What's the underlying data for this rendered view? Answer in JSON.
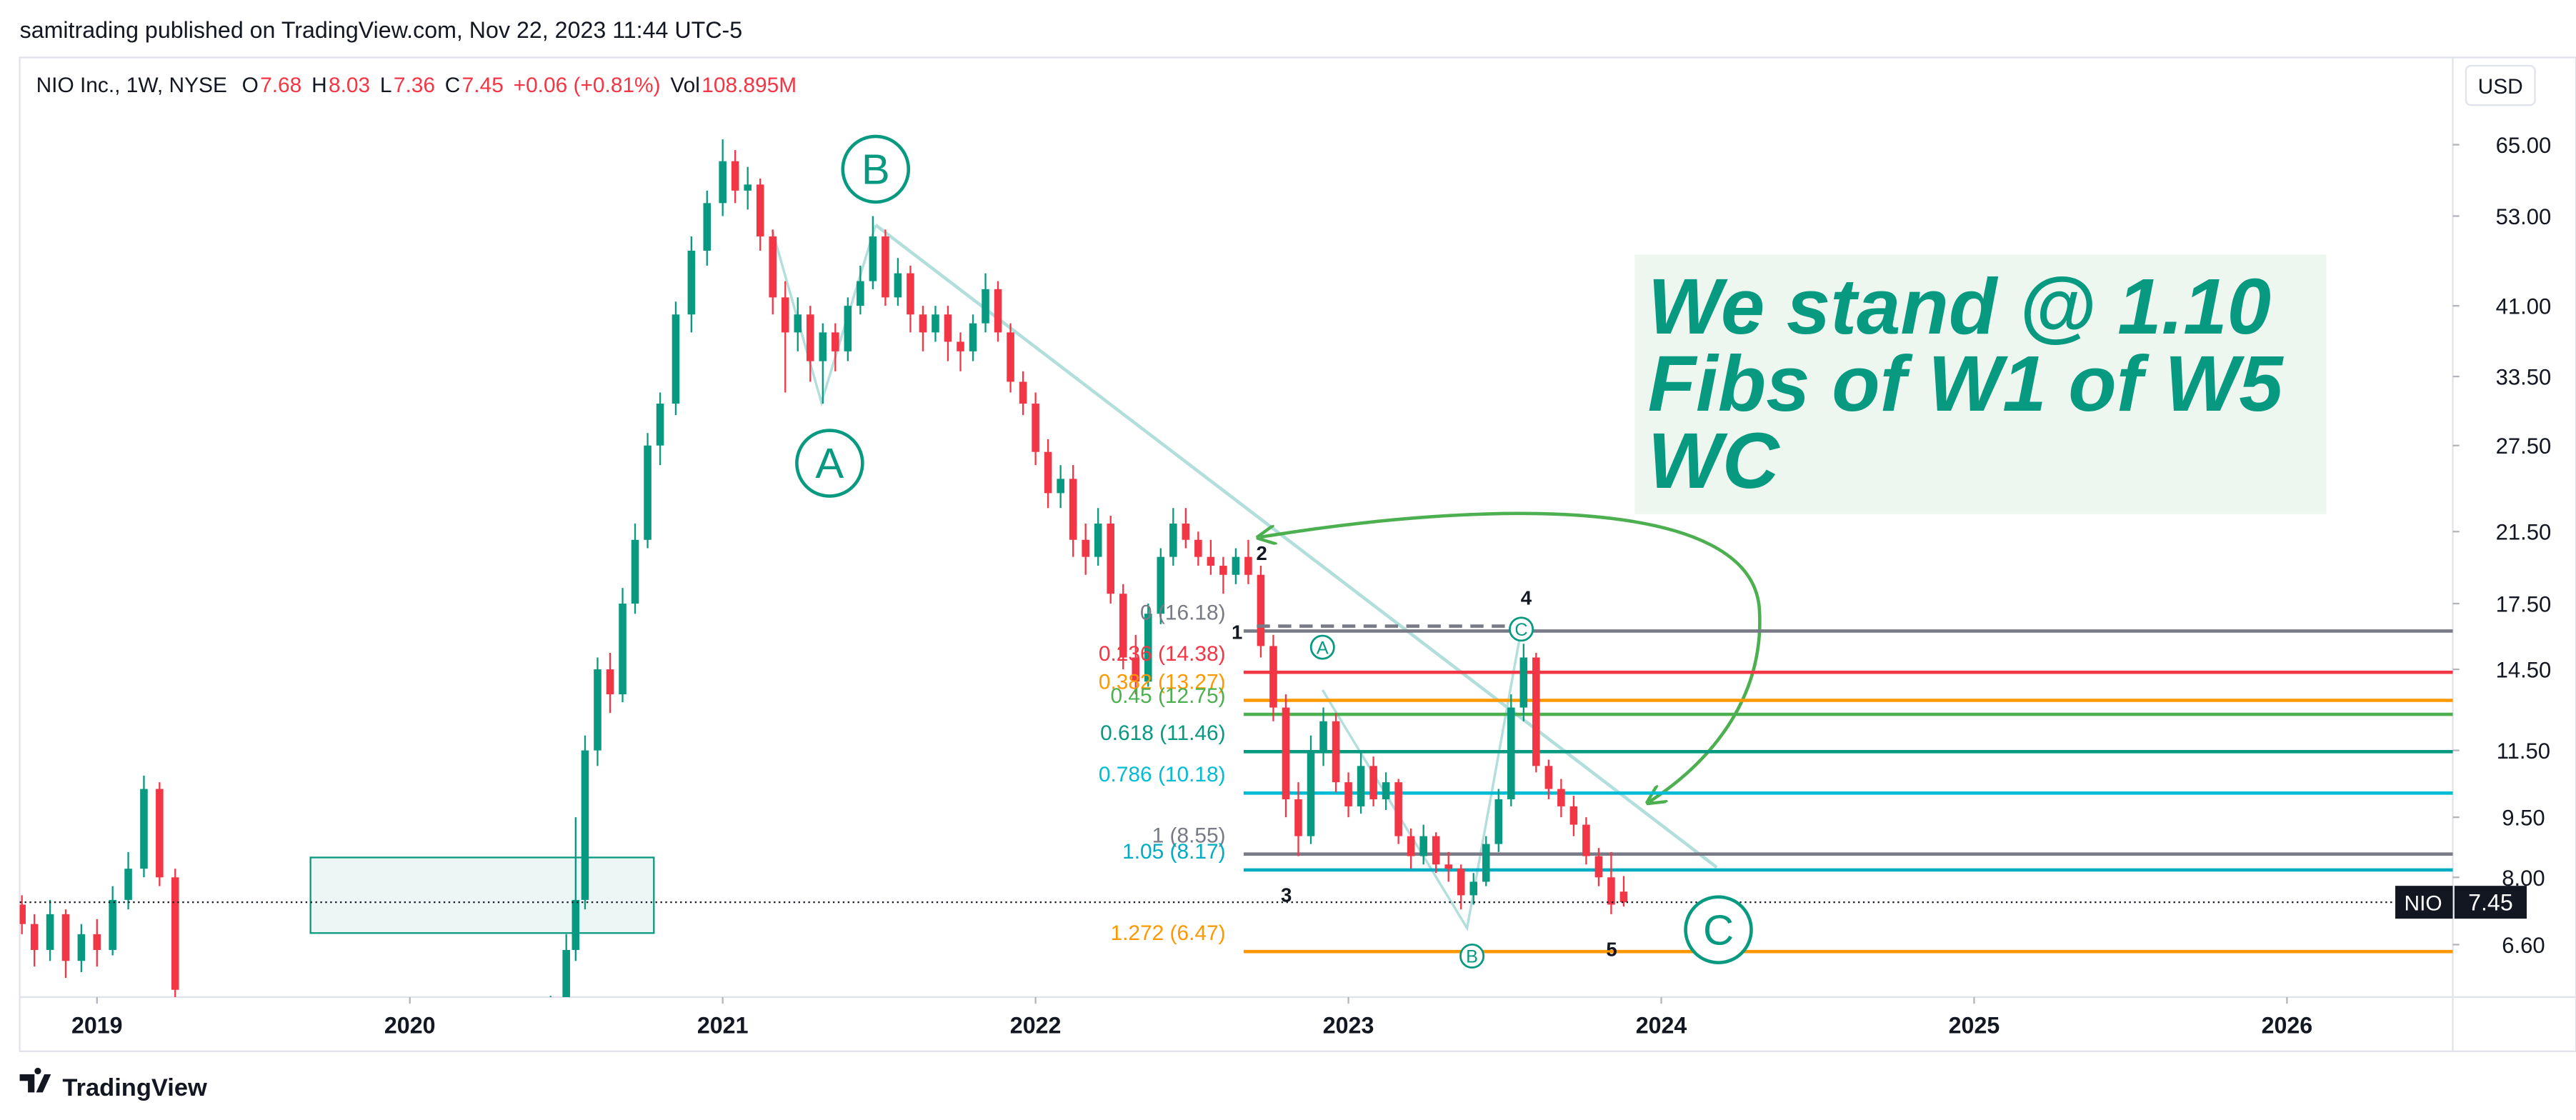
{
  "header": "samitrading published on TradingView.com, Nov 22, 2023 11:44 UTC-5",
  "footer": "TradingView",
  "chart_data": {
    "type": "candlestick",
    "legend": {
      "symbol": "NIO Inc., 1W, NYSE",
      "items": [
        {
          "key": "O",
          "value": "7.68"
        },
        {
          "key": "H",
          "value": "8.03"
        },
        {
          "key": "L",
          "value": "7.36"
        },
        {
          "key": "C",
          "value": "7.45"
        }
      ],
      "change": "+0.06 (+0.81%)",
      "volume": {
        "key": "Vol",
        "value": "108.895M"
      }
    },
    "currency": "USD",
    "log_scale": true,
    "up_color": "#089981",
    "down_color": "#f23645",
    "xlim": [
      2018.753,
      2026.53
    ],
    "xticks": [
      2019,
      2020,
      2021,
      2022,
      2023,
      2024,
      2025,
      2026
    ],
    "ylim": [
      5.68,
      83.4
    ],
    "yticks": [
      {
        "value": 65,
        "label": "65.00"
      },
      {
        "value": 53,
        "label": "53.00"
      },
      {
        "value": 41,
        "label": "41.00"
      },
      {
        "value": 33.5,
        "label": "33.50"
      },
      {
        "value": 27.5,
        "label": "27.50"
      },
      {
        "value": 21.5,
        "label": "21.50"
      },
      {
        "value": 17.5,
        "label": "17.50"
      },
      {
        "value": 14.5,
        "label": "14.50"
      },
      {
        "value": 11.5,
        "label": "11.50"
      },
      {
        "value": 9.5,
        "label": "9.50"
      },
      {
        "value": 8,
        "label": "8.00"
      },
      {
        "value": 6.6,
        "label": "6.60"
      }
    ],
    "last_price": {
      "symbol": "NIO",
      "value": 7.45
    },
    "candles": [
      [
        2018.76,
        7.4,
        7.6,
        6.8,
        7.0
      ],
      [
        2018.8,
        7.0,
        7.2,
        6.2,
        6.5
      ],
      [
        2018.85,
        6.5,
        7.5,
        6.3,
        7.2
      ],
      [
        2018.9,
        7.2,
        7.3,
        6.0,
        6.3
      ],
      [
        2018.95,
        6.3,
        7.0,
        6.1,
        6.8
      ],
      [
        2019.0,
        6.8,
        7.1,
        6.2,
        6.5
      ],
      [
        2019.05,
        6.5,
        7.8,
        6.4,
        7.5
      ],
      [
        2019.1,
        7.5,
        8.6,
        7.3,
        8.2
      ],
      [
        2019.15,
        8.2,
        10.7,
        8.0,
        10.3
      ],
      [
        2019.2,
        10.3,
        10.5,
        7.8,
        8.0
      ],
      [
        2019.25,
        8.0,
        8.2,
        5.5,
        5.8
      ],
      [
        2020.45,
        5.2,
        5.7,
        5.0,
        5.5
      ],
      [
        2020.5,
        5.5,
        6.8,
        5.4,
        6.5
      ],
      [
        2020.53,
        6.5,
        9.5,
        6.3,
        7.5
      ],
      [
        2020.56,
        7.5,
        12,
        7.3,
        11.5
      ],
      [
        2020.6,
        11.5,
        15,
        11,
        14.5
      ],
      [
        2020.64,
        14.5,
        15.2,
        12.8,
        13.5
      ],
      [
        2020.68,
        13.5,
        18.3,
        13.2,
        17.5
      ],
      [
        2020.72,
        17.5,
        22,
        17,
        21
      ],
      [
        2020.76,
        21,
        28.5,
        20.5,
        27.5
      ],
      [
        2020.8,
        27.5,
        32,
        26,
        31
      ],
      [
        2020.85,
        31,
        41.5,
        30,
        40
      ],
      [
        2020.9,
        40,
        50,
        38,
        48
      ],
      [
        2020.95,
        48,
        57,
        46,
        55
      ],
      [
        2021.0,
        55,
        66,
        53,
        62
      ],
      [
        2021.04,
        62,
        64,
        55,
        57
      ],
      [
        2021.08,
        57,
        61,
        54,
        58
      ],
      [
        2021.12,
        58,
        59,
        48,
        50
      ],
      [
        2021.16,
        50,
        51,
        40,
        42
      ],
      [
        2021.2,
        42,
        44,
        32,
        38
      ],
      [
        2021.24,
        38,
        42,
        36,
        40
      ],
      [
        2021.28,
        40,
        41,
        33,
        35
      ],
      [
        2021.32,
        35,
        39,
        31,
        38
      ],
      [
        2021.36,
        38,
        39,
        34,
        36
      ],
      [
        2021.4,
        36,
        42,
        35,
        41
      ],
      [
        2021.44,
        41,
        46,
        40,
        44
      ],
      [
        2021.48,
        44,
        53,
        43,
        50
      ],
      [
        2021.52,
        50,
        51,
        41,
        42
      ],
      [
        2021.56,
        42,
        47,
        41,
        45
      ],
      [
        2021.6,
        45,
        46,
        38,
        40
      ],
      [
        2021.64,
        40,
        41,
        36,
        38
      ],
      [
        2021.68,
        38,
        41,
        37,
        40
      ],
      [
        2021.72,
        40,
        41,
        35,
        37
      ],
      [
        2021.76,
        37,
        38,
        34,
        36
      ],
      [
        2021.8,
        36,
        40,
        35,
        39
      ],
      [
        2021.84,
        39,
        45,
        38,
        43
      ],
      [
        2021.88,
        43,
        44,
        37,
        38
      ],
      [
        2021.92,
        38,
        39,
        32,
        33
      ],
      [
        2021.96,
        33,
        34,
        30,
        31
      ],
      [
        2022.0,
        31,
        32,
        26,
        27
      ],
      [
        2022.04,
        27,
        28,
        23,
        24
      ],
      [
        2022.08,
        24,
        26,
        23,
        25
      ],
      [
        2022.12,
        25,
        26,
        20,
        21
      ],
      [
        2022.16,
        21,
        22,
        19,
        20
      ],
      [
        2022.2,
        20,
        23,
        19.5,
        22
      ],
      [
        2022.24,
        22,
        22.5,
        17.5,
        18
      ],
      [
        2022.28,
        18,
        18.5,
        14.5,
        15
      ],
      [
        2022.32,
        15,
        16,
        13.5,
        14
      ],
      [
        2022.36,
        14,
        17.5,
        13.8,
        17
      ],
      [
        2022.4,
        17,
        20.5,
        16.5,
        20
      ],
      [
        2022.44,
        20,
        23,
        19.5,
        22
      ],
      [
        2022.48,
        22,
        23,
        20.5,
        21
      ],
      [
        2022.52,
        21,
        21.5,
        19.5,
        20
      ],
      [
        2022.56,
        20,
        21,
        19,
        19.5
      ],
      [
        2022.6,
        19.5,
        20,
        18,
        19
      ],
      [
        2022.64,
        19,
        20.5,
        18.5,
        20
      ],
      [
        2022.68,
        20,
        21,
        18.5,
        19
      ],
      [
        2022.72,
        19,
        19.5,
        15,
        15.5
      ],
      [
        2022.76,
        15.5,
        16,
        12.5,
        13
      ],
      [
        2022.8,
        13,
        13.5,
        9.5,
        10
      ],
      [
        2022.84,
        10,
        10.5,
        8.5,
        9
      ],
      [
        2022.88,
        9,
        12,
        8.8,
        11.5
      ],
      [
        2022.92,
        11.5,
        13,
        11,
        12.5
      ],
      [
        2022.96,
        12.5,
        12.8,
        10.2,
        10.5
      ],
      [
        2023.0,
        10.5,
        10.8,
        9.5,
        9.8
      ],
      [
        2023.04,
        9.8,
        11.5,
        9.6,
        11
      ],
      [
        2023.08,
        11,
        11.3,
        9.8,
        10
      ],
      [
        2023.12,
        10,
        10.8,
        9.7,
        10.5
      ],
      [
        2023.16,
        10.5,
        10.6,
        8.8,
        9
      ],
      [
        2023.2,
        9,
        9.2,
        8.2,
        8.5
      ],
      [
        2023.24,
        8.5,
        9.3,
        8.3,
        9
      ],
      [
        2023.28,
        9,
        9.1,
        8.1,
        8.3
      ],
      [
        2023.32,
        8.3,
        8.6,
        7.9,
        8.2
      ],
      [
        2023.36,
        8.2,
        8.3,
        7.3,
        7.6
      ],
      [
        2023.4,
        7.6,
        8.1,
        7.4,
        7.9
      ],
      [
        2023.44,
        7.9,
        9.0,
        7.8,
        8.8
      ],
      [
        2023.48,
        8.8,
        10.3,
        8.6,
        10
      ],
      [
        2023.52,
        10,
        13.5,
        9.8,
        13
      ],
      [
        2023.56,
        13,
        15.6,
        12.5,
        15
      ],
      [
        2023.6,
        15,
        15.2,
        10.8,
        11
      ],
      [
        2023.64,
        11,
        11.2,
        10,
        10.3
      ],
      [
        2023.68,
        10.3,
        10.6,
        9.5,
        9.8
      ],
      [
        2023.72,
        9.8,
        10.1,
        9.0,
        9.3
      ],
      [
        2023.76,
        9.3,
        9.5,
        8.3,
        8.5
      ],
      [
        2023.8,
        8.5,
        8.7,
        7.8,
        8.0
      ],
      [
        2023.84,
        8.0,
        8.6,
        7.2,
        7.4
      ],
      [
        2023.88,
        7.68,
        8.03,
        7.36,
        7.45
      ]
    ],
    "fib_levels": [
      {
        "label": "0 (16.18)",
        "value": 16.18,
        "color": "#787b86"
      },
      {
        "label": "0.236 (14.38)",
        "value": 14.38,
        "color": "#f23645"
      },
      {
        "label": "0.382 (13.27)",
        "value": 13.27,
        "color": "#ff9800"
      },
      {
        "label": "0.45 (12.75)",
        "value": 12.75,
        "color": "#4caf50"
      },
      {
        "label": "0.618 (11.46)",
        "value": 11.46,
        "color": "#089981"
      },
      {
        "label": "0.786 (10.18)",
        "value": 10.18,
        "color": "#00bcd4"
      },
      {
        "label": "1 (8.55)",
        "value": 8.55,
        "color": "#787b86"
      },
      {
        "label": "1.05 (8.17)",
        "value": 8.17,
        "color": "#00acc1"
      },
      {
        "label": "1.272 (6.47)",
        "value": 6.47,
        "color": "#ff9800"
      }
    ],
    "annotations": {
      "big_waves": [
        "B",
        "A",
        "C"
      ],
      "small_waves": [
        "A",
        "C",
        "B"
      ],
      "counts": [
        "1",
        "2",
        "3",
        "4",
        "5"
      ],
      "note": [
        "We stand @ 1.10",
        "Fibs of W1 of W5",
        "WC"
      ]
    }
  }
}
